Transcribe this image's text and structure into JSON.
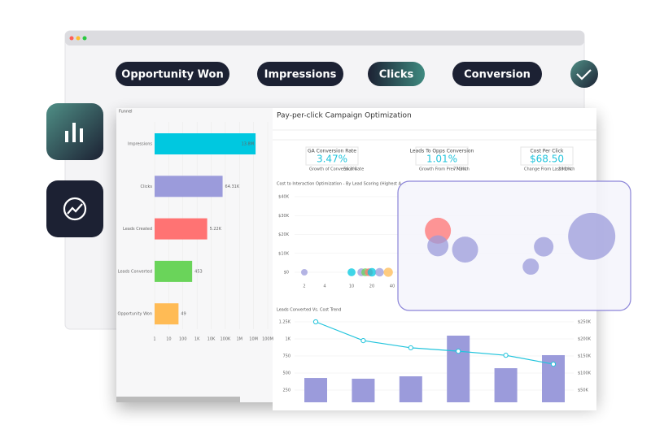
{
  "pills": [
    "Opportunity Won",
    "Impressions",
    "Clicks",
    "Conversion"
  ],
  "panel_title": "Pay-per-click Campaign Optimization",
  "kpis": [
    {
      "label": "GA Conversion Rate",
      "value": "3.47%",
      "note": "Growth of Conversion Rate",
      "note_value": "56.3%"
    },
    {
      "label": "Leads To Opps Conversion",
      "value": "1.01%",
      "note": "Growth From Prev Month",
      "note_value": "77.3%"
    },
    {
      "label": "Cost Per Click",
      "value": "$68.50",
      "note": "Change From Last Month",
      "note_value": "38.1%"
    }
  ],
  "chart_data": [
    {
      "type": "funnel",
      "title": "Funnel",
      "log_scale": true,
      "categories": [
        "Impressions",
        "Clicks",
        "Leads Created",
        "Leads Converted",
        "Opportunity Won"
      ],
      "values": [
        13800000,
        64310,
        5220,
        453,
        49
      ],
      "value_labels": [
        "13.8M",
        "64.31K",
        "5.22K",
        "453",
        "49"
      ],
      "colors": [
        "#00c8e0",
        "#9b9bdb",
        "#ff7373",
        "#6ad45a",
        "#ffbb55"
      ],
      "xlim": [
        1,
        100000000
      ],
      "xticks": [
        1,
        10,
        100,
        {
          "value": 1000,
          "label": "1K"
        },
        {
          "value": 10000,
          "label": "10K"
        },
        {
          "value": 100000,
          "label": "100K"
        },
        {
          "value": 1000000,
          "label": "1M"
        },
        {
          "value": 10000000,
          "label": "10M"
        },
        {
          "value": 100000000,
          "label": "100M"
        }
      ]
    },
    {
      "type": "bubble",
      "title": "Cost to Interaction Optimization - By Lead Scoring (Highest A ...",
      "log_scale": true,
      "x": [
        2,
        10,
        14,
        16,
        18,
        20,
        26,
        35,
        190,
        190,
        480,
        7000,
        4500,
        36000
      ],
      "y": [
        0,
        0,
        0,
        0,
        0,
        0,
        0,
        0,
        22000,
        14000,
        12000,
        13500,
        3000,
        19000
      ],
      "sizes": [
        4,
        6,
        6,
        6,
        6,
        7,
        7,
        8,
        64,
        42,
        64,
        36,
        25,
        210
      ],
      "colors": [
        "#9b9bdb",
        "#00c8e0",
        "#9b9bdb",
        "#6ad45a",
        "#ff7373",
        "#00c8e0",
        "#9b9bdb",
        "#ffbb55",
        "#ff7373",
        "#9b9bdb",
        "#9b9bdb",
        "#9b9bdb",
        "#9b9bdb",
        "#9b9bdb"
      ],
      "xlim": [
        1,
        100000
      ],
      "xticks": [
        2,
        4,
        10,
        20,
        40
      ],
      "ylim": [
        0,
        40000
      ],
      "yticks": [
        {
          "value": 0,
          "label": "$0"
        },
        {
          "value": 10000,
          "label": "$10K"
        },
        {
          "value": 20000,
          "label": "$20K"
        },
        {
          "value": 30000,
          "label": "$30K"
        },
        {
          "value": 40000,
          "label": "$40K"
        }
      ]
    },
    {
      "type": "bar-line",
      "title": "Leads Converted Vs. Cost Trend",
      "series": [
        {
          "name": "Leads Converted",
          "color": "#9b9bdb",
          "values": [
            428,
            417,
            452,
            1048,
            571,
            762
          ]
        },
        {
          "name": "Cost",
          "color": "#22c4dc",
          "axis": "y2",
          "values": [
            250000,
            195000,
            174000,
            164000,
            152000,
            126000
          ]
        }
      ],
      "ylim": [
        0,
        1500
      ],
      "yticks": [
        250,
        500,
        750,
        {
          "value": 1000,
          "label": "1K"
        },
        {
          "value": 1250,
          "label": "1.25K"
        }
      ],
      "y2lim": [
        0,
        300000
      ],
      "y2ticks": [
        {
          "value": 50000,
          "label": "$50K"
        },
        {
          "value": 100000,
          "label": "$100K"
        },
        {
          "value": 150000,
          "label": "$150K"
        },
        {
          "value": 200000,
          "label": "$200K"
        },
        {
          "value": 250000,
          "label": "$250K"
        }
      ]
    }
  ]
}
